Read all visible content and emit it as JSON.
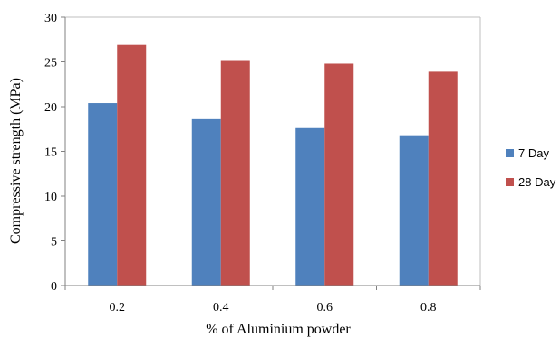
{
  "chart_data": {
    "type": "bar",
    "categories": [
      "0.2",
      "0.4",
      "0.6",
      "0.8"
    ],
    "series": [
      {
        "name": "7 Day",
        "values": [
          20.4,
          18.6,
          17.6,
          16.8
        ],
        "color": "#4F81BD"
      },
      {
        "name": "28 Day",
        "values": [
          26.9,
          25.2,
          24.8,
          23.9
        ],
        "color": "#C0504D"
      }
    ],
    "title": "",
    "xlabel": "% of Aluminium powder",
    "ylabel": "Compressive strength (MPa)",
    "ylim": [
      0,
      30
    ],
    "yticks": [
      0,
      5,
      10,
      15,
      20,
      25,
      30
    ],
    "grid": false,
    "legend_position": "right"
  }
}
